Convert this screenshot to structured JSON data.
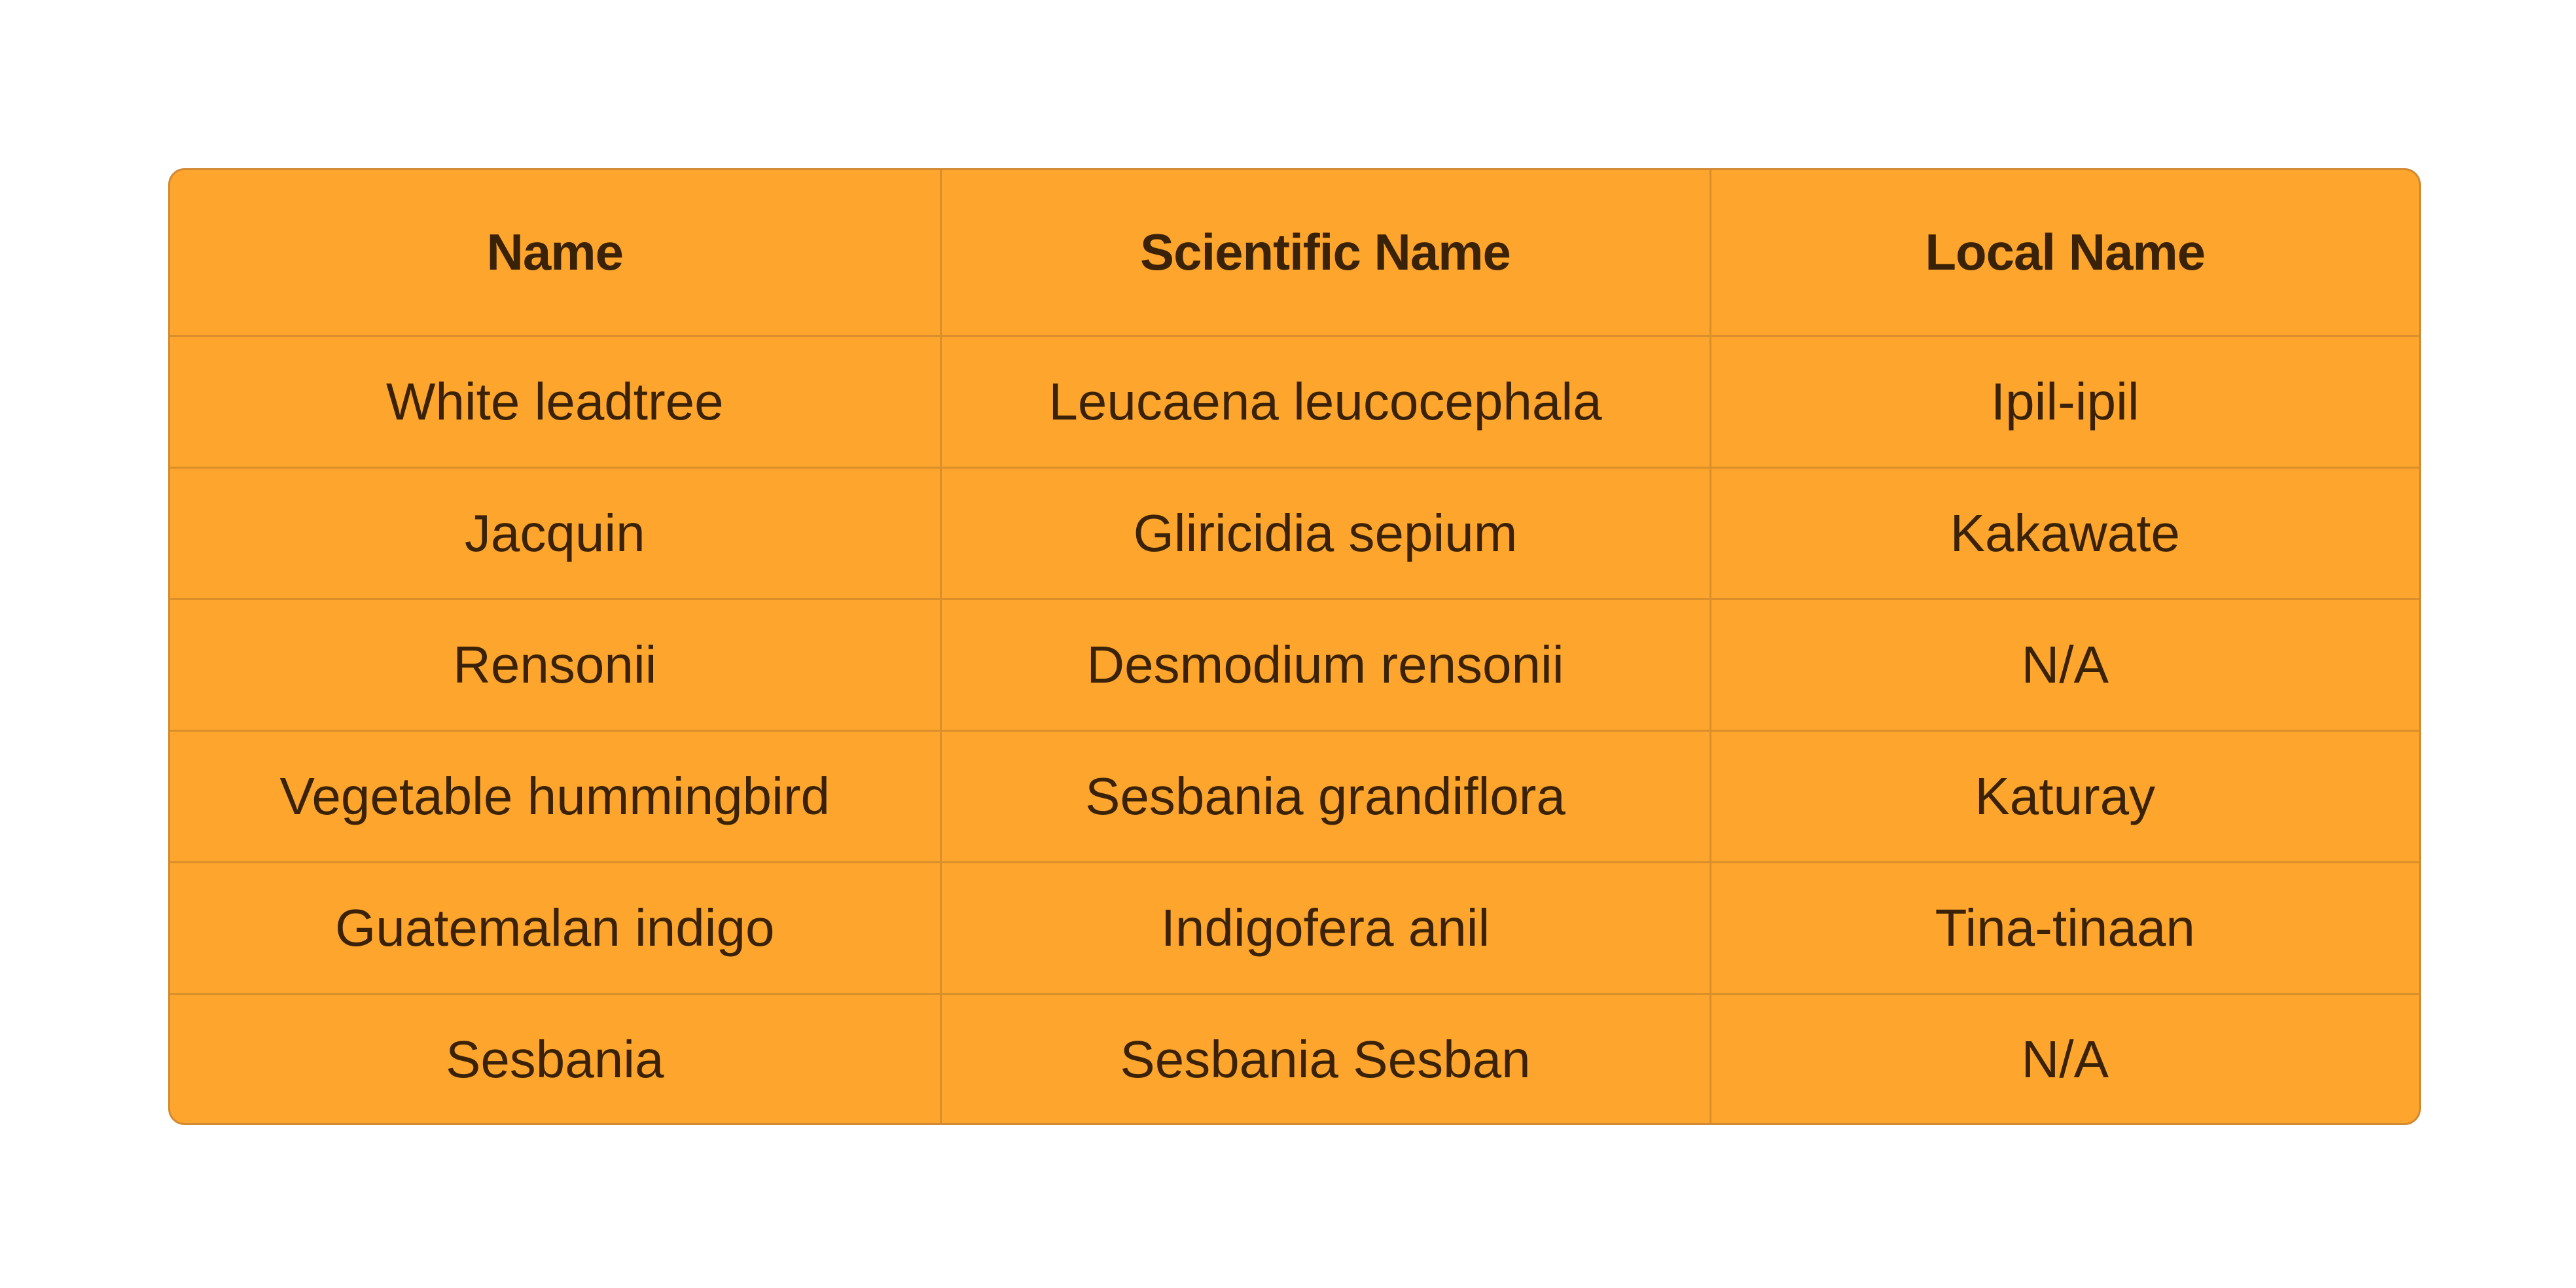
{
  "table": {
    "headers": [
      "Name",
      "Scientific Name",
      "Local Name"
    ],
    "rows": [
      [
        "White leadtree",
        "Leucaena leucocephala",
        "Ipil-ipil"
      ],
      [
        "Jacquin",
        "Gliricidia sepium",
        "Kakawate"
      ],
      [
        "Rensonii",
        "Desmodium rensonii",
        "N/A"
      ],
      [
        "Vegetable hummingbird",
        "Sesbania grandiflora",
        "Katuray"
      ],
      [
        "Guatemalan indigo",
        "Indigofera anil",
        "Tina-tinaan"
      ],
      [
        "Sesbania",
        "Sesbania Sesban",
        "N/A"
      ]
    ]
  },
  "colors": {
    "background": "#ffffff",
    "table_fill": "#fda52c",
    "grid_line": "#d98f2c",
    "text": "#3a2208"
  }
}
